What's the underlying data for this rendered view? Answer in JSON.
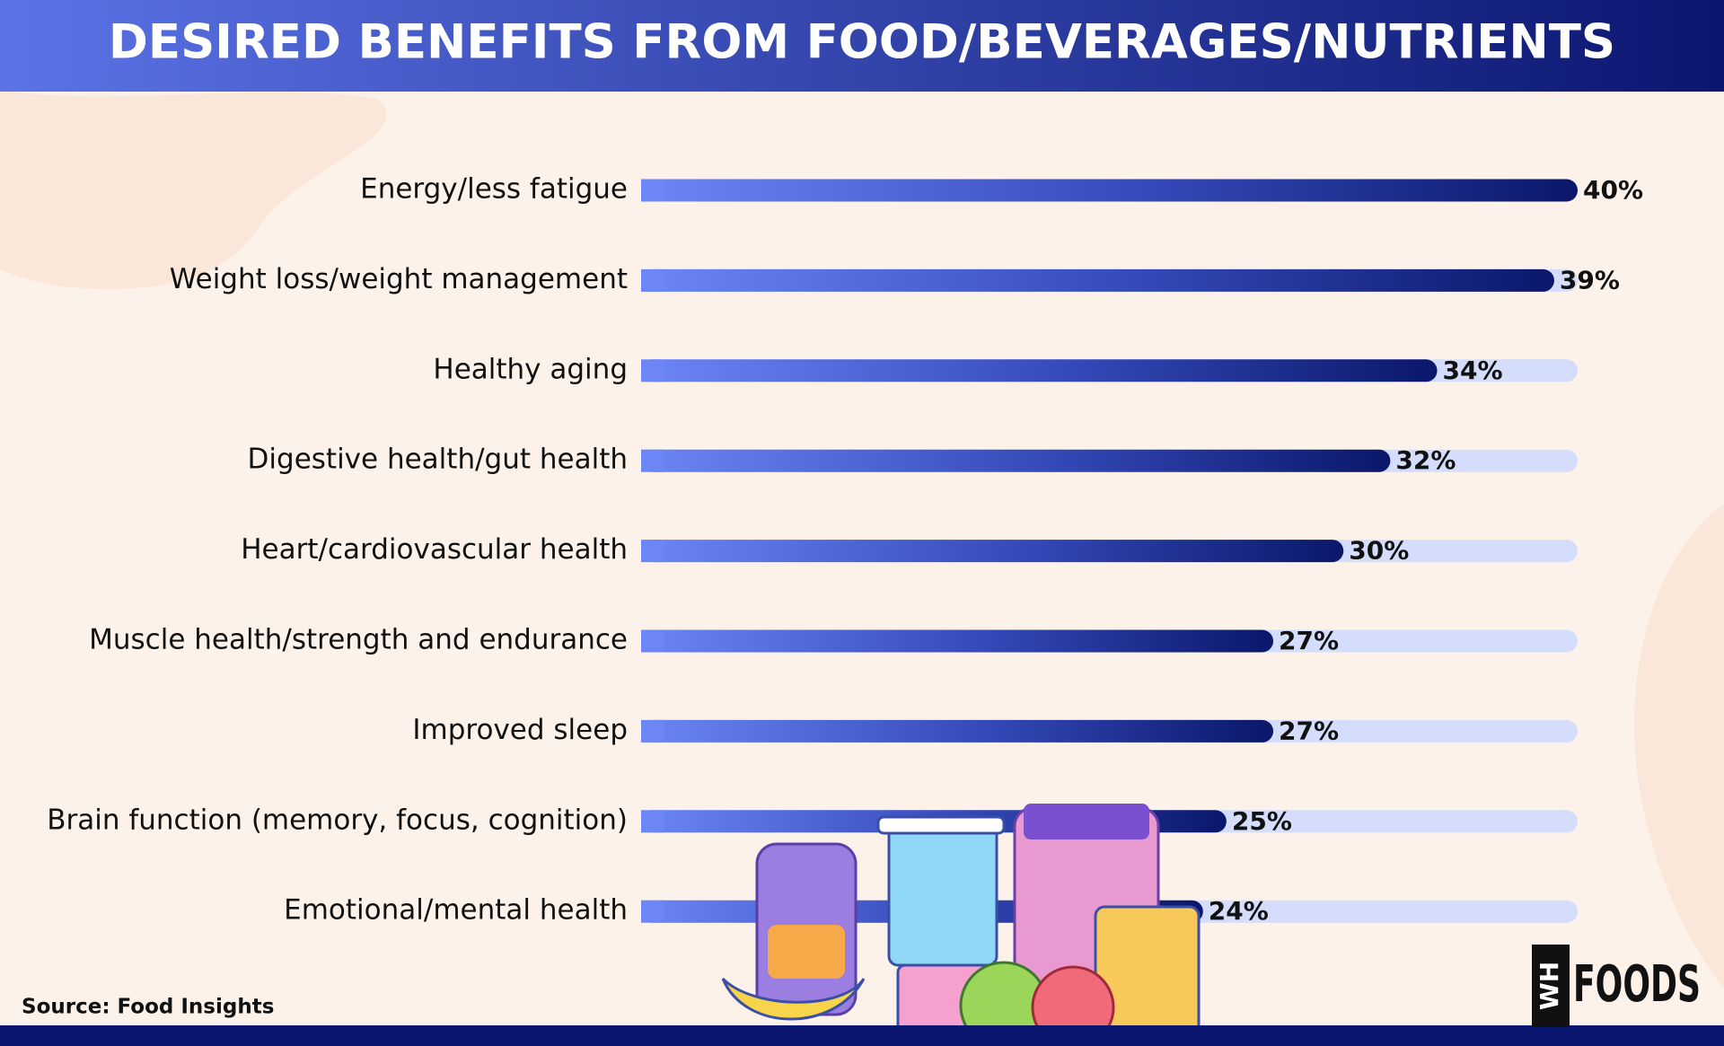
{
  "chart_data": {
    "type": "bar",
    "orientation": "horizontal",
    "title": "DESIRED BENEFITS FROM FOOD/BEVERAGES/NUTRIENTS",
    "categories": [
      "Energy/less fatigue",
      "Weight loss/weight management",
      "Healthy aging",
      "Digestive health/gut health",
      "Heart/cardiovascular health",
      "Muscle health/strength and endurance",
      "Improved sleep",
      "Brain function (memory, focus, cognition)",
      "Emotional/mental health"
    ],
    "values": [
      40,
      39,
      34,
      32,
      30,
      27,
      27,
      25,
      24
    ],
    "value_labels": [
      "40%",
      "39%",
      "34%",
      "32%",
      "30%",
      "27%",
      "27%",
      "25%",
      "24%"
    ],
    "color": "#0b1a70",
    "xlim": [
      0,
      40
    ],
    "source": "Source: Food Insights"
  },
  "logo": {
    "mark": "WH",
    "name": "FOODS"
  }
}
